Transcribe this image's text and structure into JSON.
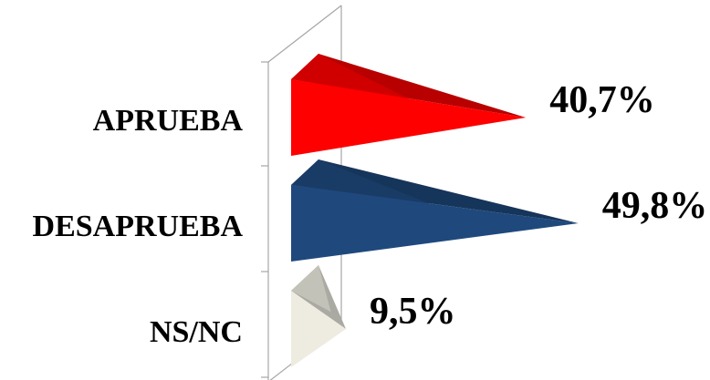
{
  "chart_data": {
    "type": "bar",
    "orientation": "horizontal",
    "shape": "3d-cone",
    "categories": [
      "APRUEBA",
      "DESAPRUEBA",
      "NS/NC"
    ],
    "values": [
      40.7,
      49.8,
      9.5
    ],
    "value_labels": [
      "40,7%",
      "49,8%",
      "9,5%"
    ],
    "colors": [
      "#ff0000",
      "#1f497d",
      "#eeece1"
    ],
    "xlim": [
      0,
      55
    ],
    "grid": false,
    "legend": "none"
  }
}
